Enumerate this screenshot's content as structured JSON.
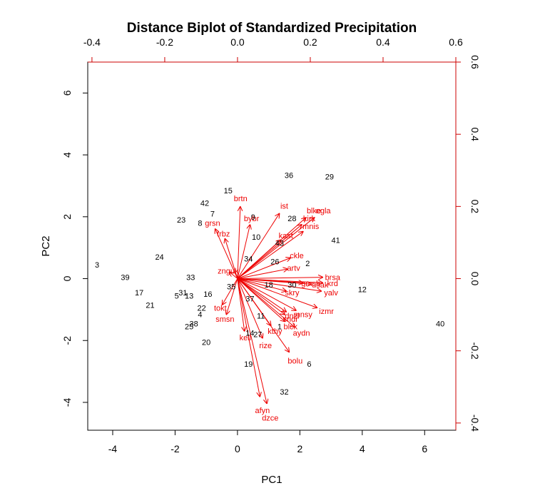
{
  "chart_data": {
    "type": "scatter",
    "title": "Distance Biplot of Standardized Precipitation",
    "xlabel": "PC1",
    "ylabel": "PC2",
    "xlim": [
      -4.8,
      7.0
    ],
    "ylim": [
      -4.9,
      7.0
    ],
    "xticks": [
      -4,
      -2,
      0,
      2,
      4,
      6
    ],
    "yticks": [
      -4,
      -2,
      0,
      2,
      4,
      6
    ],
    "top_xticks": [
      -0.4,
      -0.2,
      0.0,
      0.2,
      0.4,
      0.6
    ],
    "right_yticks": [
      -0.4,
      -0.2,
      0.0,
      0.2,
      0.4,
      0.6
    ],
    "top_xlim": [
      -0.4116,
      0.6
    ],
    "right_ylim": [
      -0.42,
      0.6
    ],
    "colors": {
      "observations": "#000000",
      "variables": "#ee0000",
      "secondary_axes": "#cc0000"
    },
    "observations": [
      {
        "label": "1",
        "x": 1.35,
        "y": -1.55
      },
      {
        "label": "2",
        "x": 2.25,
        "y": 0.5
      },
      {
        "label": "3",
        "x": -4.5,
        "y": 0.45
      },
      {
        "label": "4",
        "x": -1.2,
        "y": -1.15
      },
      {
        "label": "5",
        "x": -1.95,
        "y": -0.55
      },
      {
        "label": "6",
        "x": 2.3,
        "y": -2.75
      },
      {
        "label": "7",
        "x": -0.8,
        "y": 2.1
      },
      {
        "label": "8",
        "x": -1.2,
        "y": 1.8
      },
      {
        "label": "9",
        "x": 0.5,
        "y": 2.0
      },
      {
        "label": "10",
        "x": 0.6,
        "y": 1.35
      },
      {
        "label": "11",
        "x": 0.75,
        "y": -1.2
      },
      {
        "label": "12",
        "x": 4.0,
        "y": -0.35
      },
      {
        "label": "13",
        "x": -1.55,
        "y": -0.55
      },
      {
        "label": "14",
        "x": 0.4,
        "y": -1.75
      },
      {
        "label": "15",
        "x": -0.3,
        "y": 2.85
      },
      {
        "label": "16",
        "x": -0.95,
        "y": -0.5
      },
      {
        "label": "17",
        "x": -3.15,
        "y": -0.45
      },
      {
        "label": "18",
        "x": 1.0,
        "y": -0.2
      },
      {
        "label": "19",
        "x": 0.35,
        "y": -2.75
      },
      {
        "label": "20",
        "x": -1.0,
        "y": -2.05
      },
      {
        "label": "21",
        "x": -2.8,
        "y": -0.85
      },
      {
        "label": "22",
        "x": -1.15,
        "y": -0.95
      },
      {
        "label": "23",
        "x": -1.8,
        "y": 1.9
      },
      {
        "label": "24",
        "x": -2.5,
        "y": 0.7
      },
      {
        "label": "25",
        "x": -1.55,
        "y": -1.55
      },
      {
        "label": "26",
        "x": 1.2,
        "y": 0.55
      },
      {
        "label": "27",
        "x": 0.65,
        "y": -1.8
      },
      {
        "label": "28",
        "x": 1.75,
        "y": 1.95
      },
      {
        "label": "29",
        "x": 2.95,
        "y": 3.3
      },
      {
        "label": "30",
        "x": 1.75,
        "y": -0.2
      },
      {
        "label": "31",
        "x": -1.75,
        "y": -0.45
      },
      {
        "label": "32",
        "x": 1.5,
        "y": -3.65
      },
      {
        "label": "33",
        "x": -1.5,
        "y": 0.05
      },
      {
        "label": "34",
        "x": 0.35,
        "y": 0.65
      },
      {
        "label": "35",
        "x": -0.2,
        "y": -0.25
      },
      {
        "label": "36",
        "x": 1.65,
        "y": 3.35
      },
      {
        "label": "37",
        "x": 0.4,
        "y": -0.65
      },
      {
        "label": "38",
        "x": -1.4,
        "y": -1.45
      },
      {
        "label": "39",
        "x": -3.6,
        "y": 0.05
      },
      {
        "label": "40",
        "x": 6.5,
        "y": -1.45
      },
      {
        "label": "41",
        "x": 3.15,
        "y": 1.25
      },
      {
        "label": "42",
        "x": -1.05,
        "y": 2.45
      },
      {
        "label": "43",
        "x": 1.35,
        "y": 1.15
      }
    ],
    "variables": [
      {
        "label": "brtn",
        "x": 0.1,
        "y": 2.6
      },
      {
        "label": "ist",
        "x": 1.5,
        "y": 2.35
      },
      {
        "label": "blke",
        "x": 2.45,
        "y": 2.2
      },
      {
        "label": "egla",
        "x": 2.75,
        "y": 2.2
      },
      {
        "label": "kirk",
        "x": 2.3,
        "y": 1.95
      },
      {
        "label": "mnis",
        "x": 2.35,
        "y": 1.7
      },
      {
        "label": "bybr",
        "x": 0.45,
        "y": 1.95
      },
      {
        "label": "grsn",
        "x": -0.8,
        "y": 1.8
      },
      {
        "label": "kast",
        "x": 1.55,
        "y": 1.4
      },
      {
        "label": "trbz",
        "x": -0.45,
        "y": 1.45
      },
      {
        "label": "ckle",
        "x": 1.9,
        "y": 0.75
      },
      {
        "label": "artv",
        "x": 1.8,
        "y": 0.35
      },
      {
        "label": "znguk",
        "x": -0.3,
        "y": 0.25
      },
      {
        "label": "brsa",
        "x": 3.05,
        "y": 0.05
      },
      {
        "label": "gmsh",
        "x": 2.35,
        "y": -0.15
      },
      {
        "label": "usak",
        "x": 2.65,
        "y": -0.2
      },
      {
        "label": "krd",
        "x": 3.05,
        "y": -0.15
      },
      {
        "label": "yalv",
        "x": 3.0,
        "y": -0.45
      },
      {
        "label": "skry",
        "x": 1.75,
        "y": -0.45
      },
      {
        "label": "izmr",
        "x": 2.85,
        "y": -1.05
      },
      {
        "label": "mnsy",
        "x": 2.1,
        "y": -1.15
      },
      {
        "label": "dnzl",
        "x": 1.75,
        "y": -1.2
      },
      {
        "label": "sndr",
        "x": 1.7,
        "y": -1.3
      },
      {
        "label": "blck",
        "x": 1.7,
        "y": -1.55
      },
      {
        "label": "aydn",
        "x": 2.05,
        "y": -1.75
      },
      {
        "label": "kthy",
        "x": 1.2,
        "y": -1.7
      },
      {
        "label": "tokt",
        "x": -0.55,
        "y": -0.95
      },
      {
        "label": "smsn",
        "x": -0.4,
        "y": -1.3
      },
      {
        "label": "kell",
        "x": 0.25,
        "y": -1.9
      },
      {
        "label": "rize",
        "x": 0.9,
        "y": -2.15
      },
      {
        "label": "bolu",
        "x": 1.85,
        "y": -2.65
      },
      {
        "label": "afyn",
        "x": 0.8,
        "y": -4.25
      },
      {
        "label": "dzce",
        "x": 1.05,
        "y": -4.5
      }
    ]
  }
}
